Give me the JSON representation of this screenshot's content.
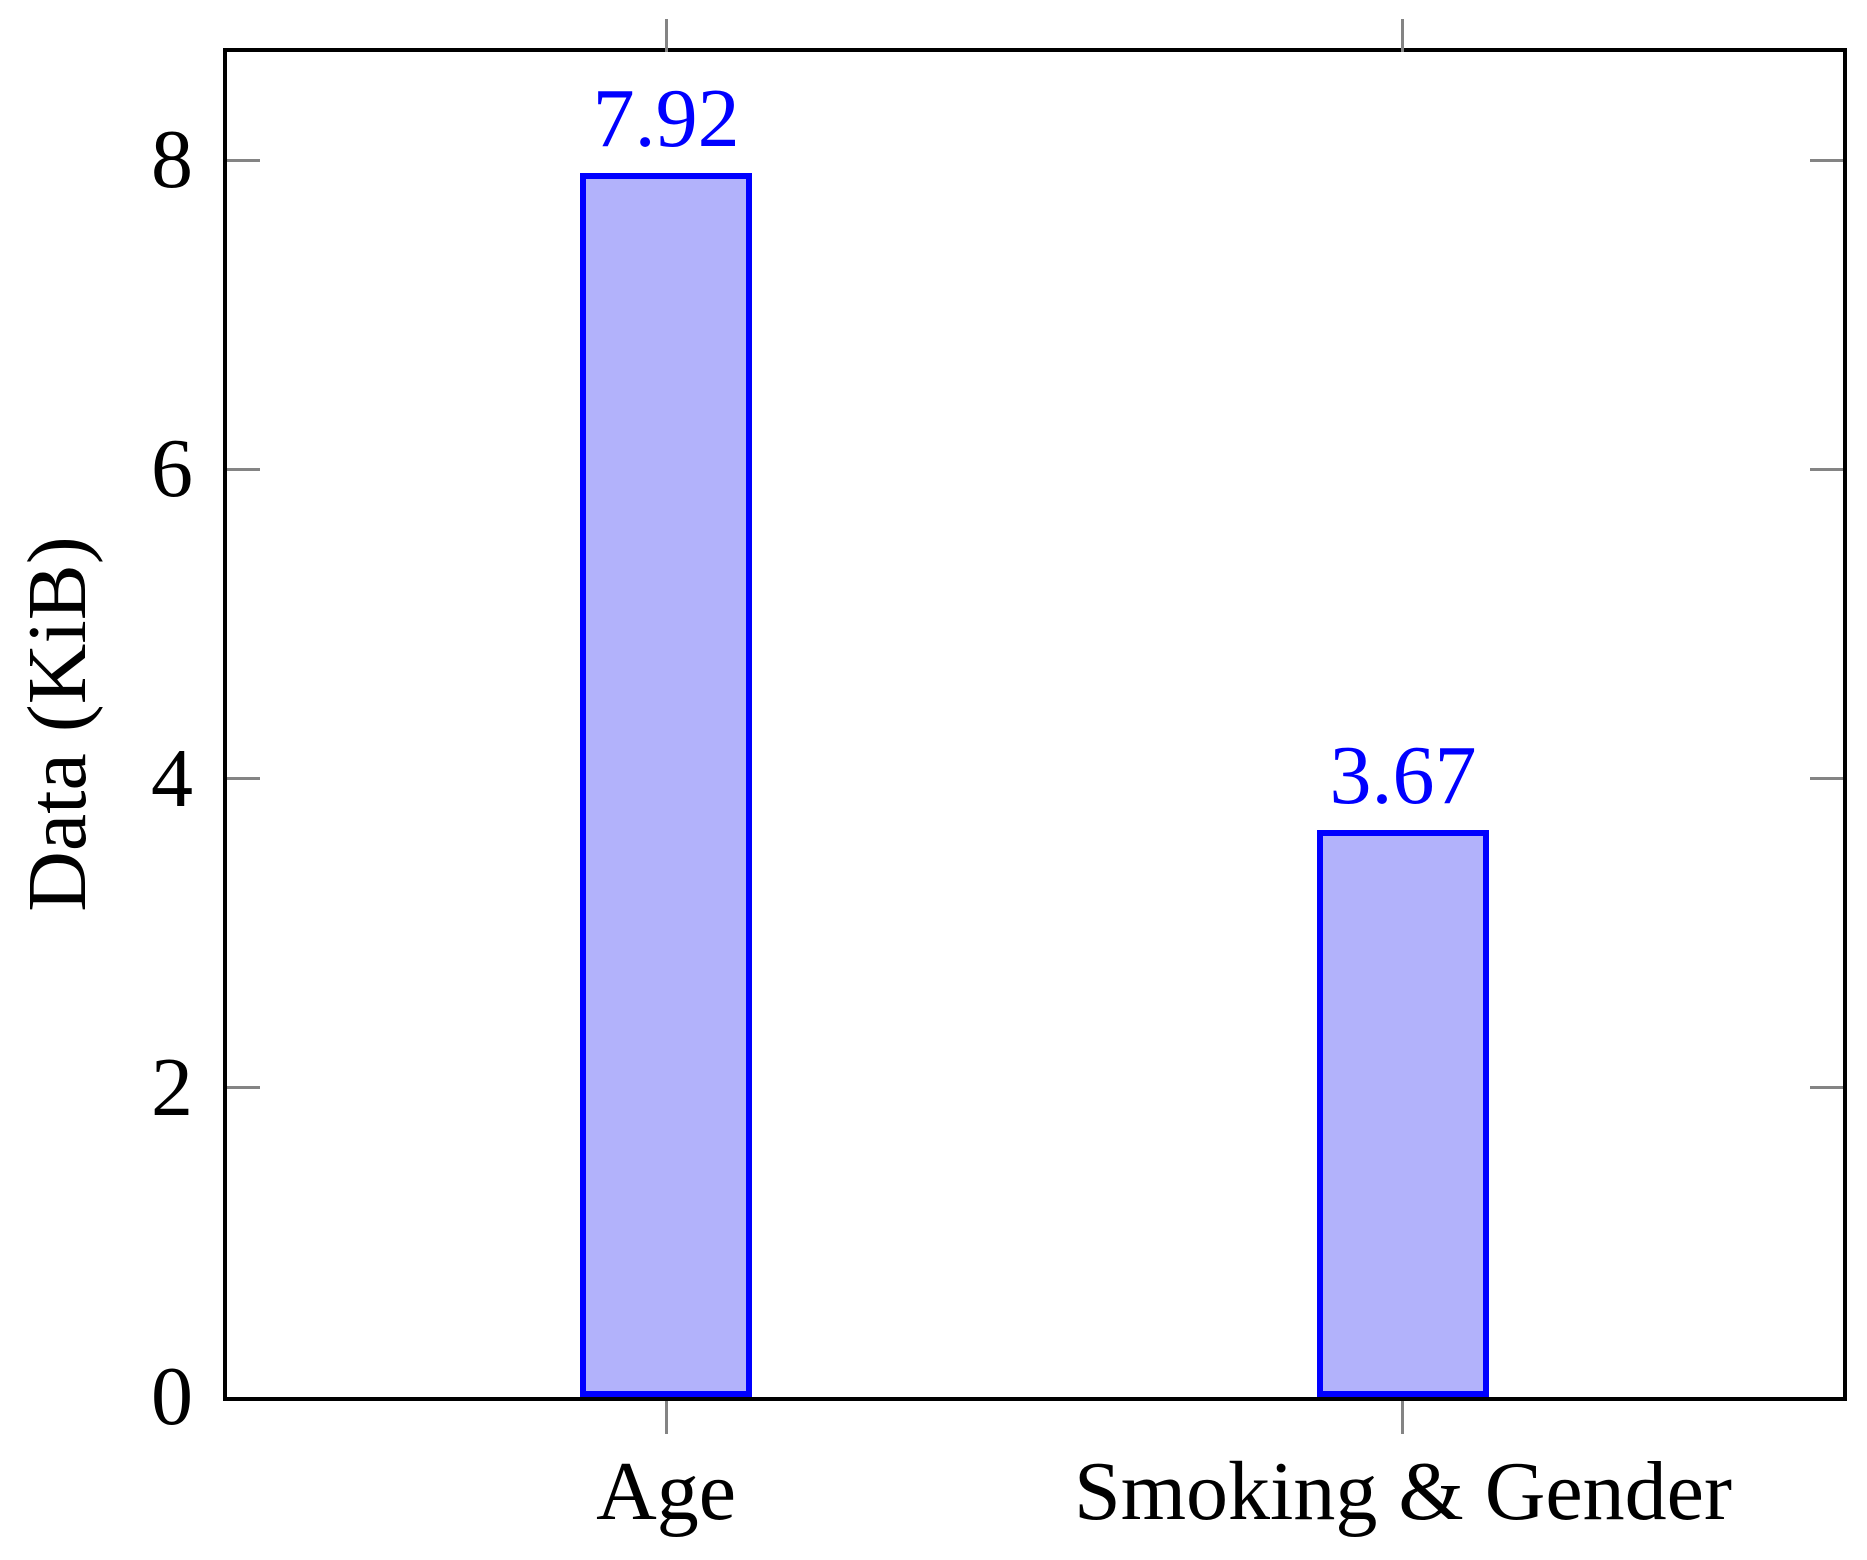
{
  "chart_data": {
    "type": "bar",
    "title": "",
    "categories": [
      "Age",
      "Smoking & Gender"
    ],
    "values": [
      7.92,
      3.67
    ],
    "value_labels": [
      "7.92",
      "3.67"
    ],
    "xlabel": "",
    "ylabel": "Data (KiB)",
    "yticks": [
      "0",
      "2",
      "4",
      "6",
      "8"
    ],
    "ytick_values": [
      0,
      2,
      4,
      6,
      8
    ],
    "ylim": [
      0,
      8.7
    ],
    "grid": false,
    "legend_position": "none",
    "frame": "closed-box",
    "colors": {
      "bar_fill": "#B2B2FB",
      "bar_border": "#0000FF",
      "value_label": "#0000FF",
      "axis_frame": "#000000",
      "tick_mark": "#848484",
      "text": "#000000",
      "background": "#FFFFFF"
    }
  }
}
